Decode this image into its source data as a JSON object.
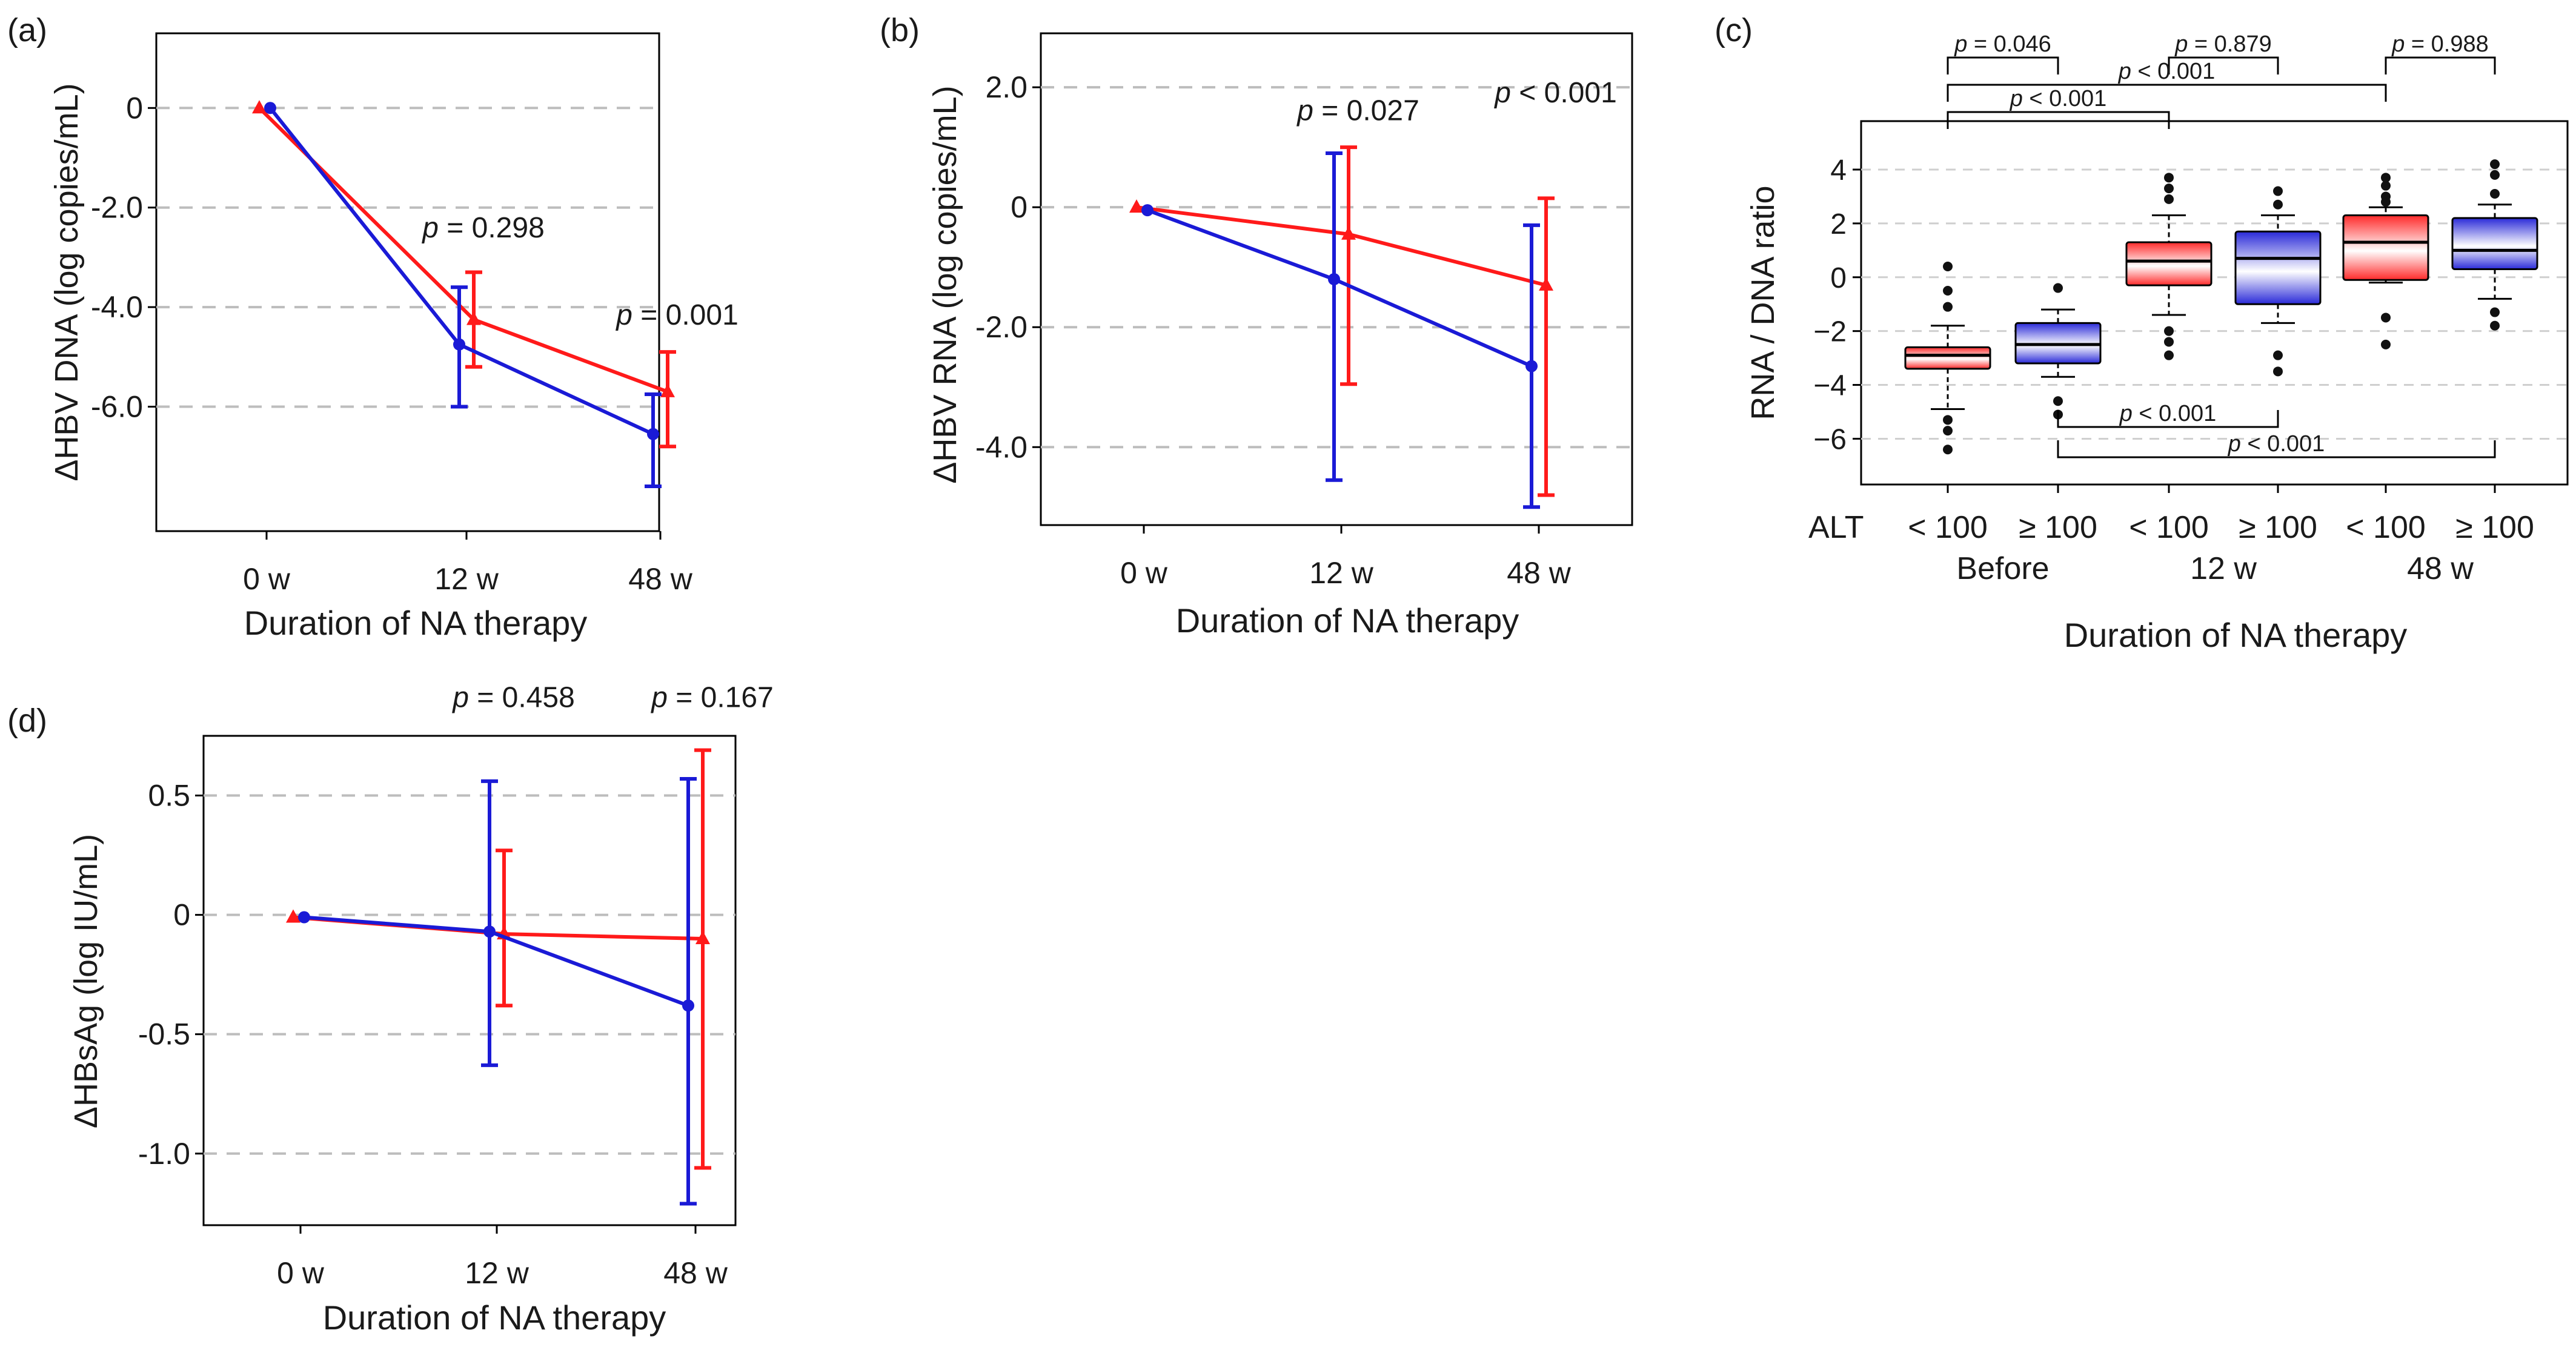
{
  "colors": {
    "red_group": "#ff1a1a",
    "blue_group": "#1a1ad6",
    "grid": "#bdbdbd"
  },
  "chart_data": [
    {
      "panel": "(a)",
      "type": "line",
      "ylabel": "ΔHBV DNA (log copies/mL)",
      "xlabel": "Duration of NA therapy",
      "categories": [
        "0 w",
        "12 w",
        "48 w"
      ],
      "ylim": [
        -8.5,
        1.5
      ],
      "yticks": [
        0,
        -2,
        -4,
        -6
      ],
      "ytick_labels": [
        "0",
        "-2.0",
        "-4.0",
        "-6.0"
      ],
      "series": [
        {
          "name": "red",
          "values": [
            0,
            -4.25,
            -5.7
          ],
          "lower": [
            0,
            -5.2,
            -6.8
          ],
          "upper": [
            0,
            -3.3,
            -4.9
          ]
        },
        {
          "name": "blue",
          "values": [
            0,
            -4.75,
            -6.55
          ],
          "lower": [
            0,
            -6.0,
            -7.6
          ],
          "upper": [
            0,
            -3.6,
            -5.75
          ]
        }
      ],
      "annotations": [
        {
          "cat": 1,
          "y": -2.6,
          "p": "p",
          "rest": " = 0.298"
        },
        {
          "cat": 2,
          "y": -4.35,
          "p": "p",
          "rest": " = 0.001"
        }
      ]
    },
    {
      "panel": "(b)",
      "type": "line",
      "ylabel": "ΔHBV RNA (log copies/mL)",
      "xlabel": "Duration of NA therapy",
      "categories": [
        "0 w",
        "12 w",
        "48 w"
      ],
      "ylim": [
        -5.3,
        2.9
      ],
      "yticks": [
        2,
        0,
        -2,
        -4
      ],
      "ytick_labels": [
        "2.0",
        "0",
        "-2.0",
        "-4.0"
      ],
      "series": [
        {
          "name": "red",
          "values": [
            0,
            -0.45,
            -1.3
          ],
          "lower": [
            0,
            -2.95,
            -4.8
          ],
          "upper": [
            0,
            1.0,
            0.15
          ]
        },
        {
          "name": "blue",
          "values": [
            -0.05,
            -1.2,
            -2.65
          ],
          "lower": [
            -0.05,
            -4.55,
            -5.0
          ],
          "upper": [
            -0.05,
            0.9,
            -0.3
          ]
        }
      ],
      "annotations": [
        {
          "cat": 1,
          "y": 1.45,
          "p": "p",
          "rest": " = 0.027"
        },
        {
          "cat": 2,
          "y": 1.75,
          "p": "p",
          "rest": " < 0.001"
        }
      ]
    },
    {
      "panel": "(c)",
      "type": "box",
      "ylabel": "RNA / DNA ratio",
      "xlabel": "Duration of NA therapy",
      "alt_label": "ALT",
      "box_labels": [
        "< 100",
        "≥ 100",
        "< 100",
        "≥ 100",
        "< 100",
        "≥ 100"
      ],
      "group_labels": [
        "Before",
        "12 w",
        "48 w"
      ],
      "ylim": [
        -7.7,
        5.8
      ],
      "yticks": [
        4,
        2,
        0,
        -2,
        -4,
        -6
      ],
      "ytick_labels": [
        "4",
        "2",
        "0",
        "−2",
        "−4",
        "−6"
      ],
      "boxes": [
        {
          "color": "red",
          "q1": -3.4,
          "median": -2.9,
          "q3": -2.6,
          "wlo": -4.9,
          "whi": -1.8,
          "outliers": [
            -5.3,
            -5.7,
            -6.4,
            -1.1,
            -0.5,
            0.4
          ]
        },
        {
          "color": "blue",
          "q1": -3.2,
          "median": -2.5,
          "q3": -1.7,
          "wlo": -3.7,
          "whi": -1.2,
          "outliers": [
            -4.6,
            -5.1,
            -0.4
          ]
        },
        {
          "color": "red",
          "q1": -0.3,
          "median": 0.6,
          "q3": 1.3,
          "wlo": -1.4,
          "whi": 2.3,
          "outliers": [
            -2.0,
            -2.4,
            -2.9,
            2.9,
            3.3,
            3.7
          ]
        },
        {
          "color": "blue",
          "q1": -1.0,
          "median": 0.7,
          "q3": 1.7,
          "wlo": -1.7,
          "whi": 2.3,
          "outliers": [
            -2.9,
            -3.5,
            2.7,
            3.2
          ]
        },
        {
          "color": "red",
          "q1": -0.1,
          "median": 1.3,
          "q3": 2.3,
          "wlo": -0.2,
          "whi": 2.6,
          "outliers": [
            -1.5,
            -2.5,
            2.8,
            3.0,
            3.4,
            3.7
          ]
        },
        {
          "color": "blue",
          "q1": 0.3,
          "median": 1.0,
          "q3": 2.2,
          "wlo": -0.8,
          "whi": 2.7,
          "outliers": [
            -1.3,
            -1.8,
            3.1,
            3.8,
            4.2
          ]
        }
      ],
      "brackets": [
        {
          "from": 0,
          "to": 1,
          "level": 0,
          "label": "p = 0.046",
          "side": "top"
        },
        {
          "from": 2,
          "to": 3,
          "level": 0,
          "label": "p = 0.879",
          "side": "top"
        },
        {
          "from": 4,
          "to": 5,
          "level": 0,
          "label": "p = 0.988",
          "side": "top"
        },
        {
          "from": 0,
          "to": 4,
          "level": 1,
          "label": "p < 0.001",
          "side": "top"
        },
        {
          "from": 0,
          "to": 2,
          "level": 2,
          "label": "p < 0.001",
          "side": "top"
        },
        {
          "from": 1,
          "to": 3,
          "level": 0,
          "label": "p < 0.001",
          "side": "bottom"
        },
        {
          "from": 1,
          "to": 5,
          "level": 1,
          "label": "p < 0.001",
          "side": "bottom"
        }
      ]
    },
    {
      "panel": "(d)",
      "type": "line",
      "ylabel": "ΔHBsAg (log IU/mL)",
      "xlabel": "Duration of NA therapy",
      "categories": [
        "0 w",
        "12 w",
        "48 w"
      ],
      "ylim": [
        -1.3,
        0.75
      ],
      "yticks": [
        0.5,
        0,
        -0.5,
        -1.0
      ],
      "ytick_labels": [
        "0.5",
        "0",
        "-0.5",
        "-1.0"
      ],
      "series": [
        {
          "name": "red",
          "values": [
            -0.01,
            -0.08,
            -0.1
          ],
          "lower": [
            -0.01,
            -0.38,
            -1.06
          ],
          "upper": [
            -0.01,
            0.27,
            0.69
          ]
        },
        {
          "name": "blue",
          "values": [
            -0.01,
            -0.07,
            -0.38
          ],
          "lower": [
            -0.01,
            -0.63,
            -1.21
          ],
          "upper": [
            -0.01,
            0.56,
            0.57
          ]
        }
      ],
      "annotations": [
        {
          "cat": 1,
          "y": 0.87,
          "p": "p",
          "rest": " = 0.458"
        },
        {
          "cat": 2,
          "y": 0.87,
          "p": "p",
          "rest": " = 0.167"
        }
      ]
    }
  ]
}
